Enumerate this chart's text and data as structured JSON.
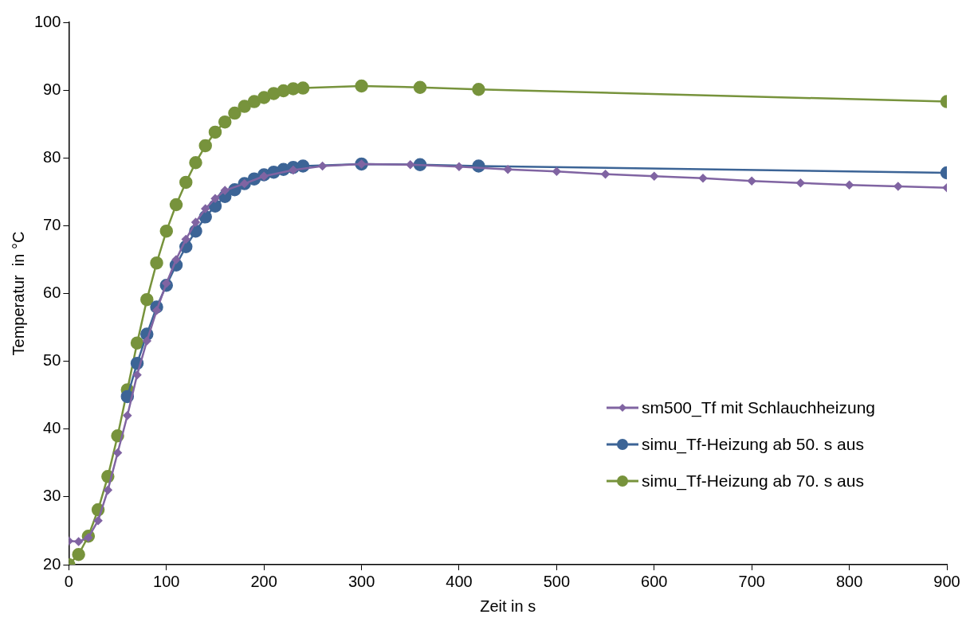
{
  "chart_data": {
    "type": "line",
    "xlabel": "Zeit in s",
    "ylabel": "Temperatur  in °C",
    "xlim": [
      0,
      900
    ],
    "ylim": [
      20,
      100
    ],
    "xticks": [
      0,
      100,
      200,
      300,
      400,
      500,
      600,
      700,
      800,
      900
    ],
    "yticks": [
      20,
      30,
      40,
      50,
      60,
      70,
      80,
      90,
      100
    ],
    "grid": false,
    "legend": "bottom right",
    "series": [
      {
        "name": "sm500_Tf mit Schlauchheizung",
        "color": "#8064a2",
        "marker": "diamond",
        "x": [
          0,
          10,
          20,
          30,
          40,
          50,
          60,
          70,
          80,
          90,
          100,
          110,
          120,
          130,
          140,
          150,
          160,
          180,
          200,
          230,
          260,
          300,
          350,
          400,
          450,
          500,
          550,
          600,
          650,
          700,
          750,
          800,
          850,
          900
        ],
        "values": [
          23.5,
          23.4,
          24,
          26.5,
          31,
          36.5,
          42,
          48,
          53,
          57.5,
          61.5,
          65,
          68,
          70.5,
          72.5,
          74,
          75.2,
          76.2,
          77.3,
          78.2,
          78.8,
          79.1,
          79,
          78.7,
          78.3,
          78,
          77.6,
          77.3,
          77,
          76.6,
          76.3,
          76,
          75.8,
          75.6
        ]
      },
      {
        "name": "simu_Tf-Heizung ab 50. s aus",
        "color": "#3c6496",
        "marker": "circle",
        "x": [
          60,
          70,
          80,
          90,
          100,
          110,
          120,
          130,
          140,
          150,
          160,
          170,
          180,
          190,
          200,
          210,
          220,
          230,
          240,
          300,
          360,
          420,
          900
        ],
        "values": [
          44.8,
          49.7,
          54,
          58,
          61.2,
          64.2,
          66.9,
          69.2,
          71.3,
          72.9,
          74.3,
          75.3,
          76.2,
          76.9,
          77.5,
          77.9,
          78.3,
          78.6,
          78.8,
          79.1,
          79,
          78.8,
          77.8
        ]
      },
      {
        "name": "simu_Tf-Heizung ab 70. s aus",
        "color": "#77933c",
        "marker": "circle",
        "x": [
          0,
          10,
          20,
          30,
          40,
          50,
          60,
          70,
          80,
          90,
          100,
          110,
          120,
          130,
          140,
          150,
          160,
          170,
          180,
          190,
          200,
          210,
          220,
          230,
          240,
          300,
          360,
          420,
          900
        ],
        "values": [
          20,
          21.5,
          24.2,
          28.1,
          33,
          39,
          45.8,
          52.7,
          59.1,
          64.5,
          69.2,
          73.1,
          76.4,
          79.3,
          81.8,
          83.8,
          85.3,
          86.6,
          87.6,
          88.3,
          88.9,
          89.5,
          89.9,
          90.2,
          90.3,
          90.6,
          90.4,
          90.1,
          88.3
        ]
      }
    ]
  }
}
